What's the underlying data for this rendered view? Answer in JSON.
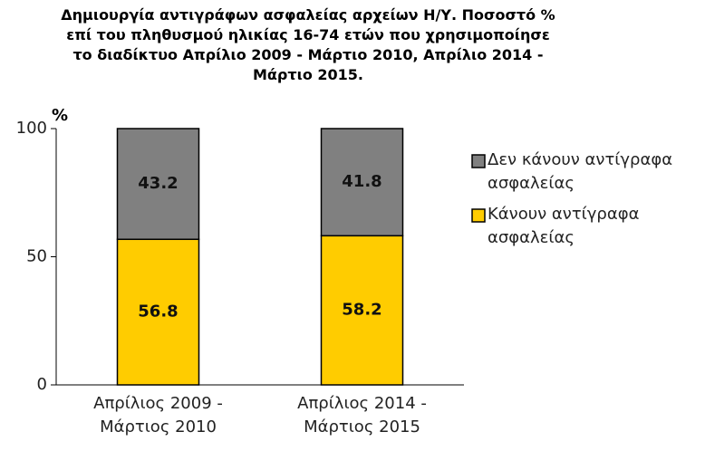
{
  "chart_data": {
    "type": "stacked_bar",
    "title": "Δημιουργία αντιγράφων ασφαλείας αρχείων Η/Υ. Ποσοστό % επί του πληθυσμού ηλικίας 16-74 ετών που χρησιμοποίησε το διαδίκτυο Απρίλιο 2009 - Μάρτιο 2010, Απρίλιο 2014 - Μάρτιο 2015.",
    "y_label": "%",
    "categories": [
      "Απρίλιος 2009 - Μάρτιος 2010",
      "Απρίλιος 2014 - Μάρτιος 2015"
    ],
    "series": [
      {
        "name": "Κάνουν αντίγραφα ασφαλείας",
        "color": "#ffcc00",
        "values": [
          56.8,
          58.2
        ]
      },
      {
        "name": "Δεν κάνουν αντίγραφα ασφαλείας",
        "color": "#808080",
        "values": [
          43.2,
          41.8
        ]
      }
    ],
    "ylim": [
      0,
      100
    ],
    "yticks": [
      0,
      50,
      100
    ]
  }
}
